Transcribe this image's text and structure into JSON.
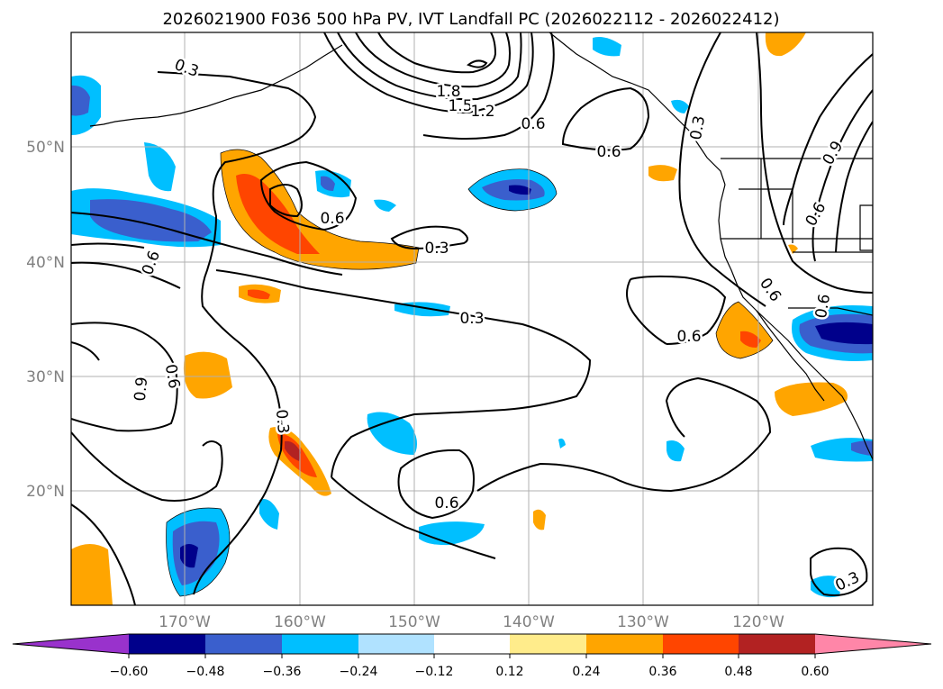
{
  "title": "2026021900 F036 500 hPa PV, IVT Landfall PC (2026022112 - 2026022412)",
  "lat_labels": [
    "50°N",
    "40°N",
    "30°N",
    "20°N"
  ],
  "lon_labels": [
    "170°W",
    "160°W",
    "150°W",
    "140°W",
    "130°W",
    "120°W"
  ],
  "colorbar": {
    "ticks": [
      "−0.60",
      "−0.48",
      "−0.36",
      "−0.24",
      "−0.12",
      "0.12",
      "0.24",
      "0.36",
      "0.48",
      "0.60"
    ],
    "colors": [
      "#9932cc",
      "#00008b",
      "#3a5fcd",
      "#00bfff",
      "#b0e2ff",
      "#ffffff",
      "#ffec8b",
      "#ffa500",
      "#ff4500",
      "#b22222",
      "#ff86a8"
    ]
  },
  "contour_labels": [
    "0.3",
    "1.8",
    "1.5",
    "1.2",
    "0.6",
    "0.6",
    "0.3",
    "0.9",
    "0.6",
    "0.6",
    "0.6",
    "0.3",
    "0.6",
    "0.3",
    "0.6",
    "0.6",
    "0.9",
    "0.6",
    "0.3",
    "0.6",
    "0.3"
  ]
}
